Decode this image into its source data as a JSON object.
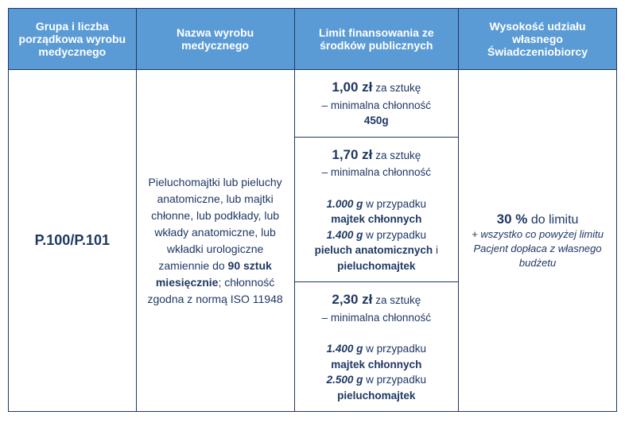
{
  "colors": {
    "header_bg": "#5b9bd5",
    "header_text": "#ffffff",
    "border": "#1f3864",
    "body_text": "#1f3864"
  },
  "headers": {
    "col1": "Grupa i liczba porządkowa wyrobu medycznego",
    "col2": "Nazwa wyrobu medycznego",
    "col3": "Limit finansowania ze środków publicznych",
    "col4": "Wysokość udziału własnego Świadczeniobiorcy"
  },
  "row": {
    "code": "P.100/P.101",
    "desc_part1": "Pieluchomajtki lub pieluchy anatomiczne, lub majtki chłonne, lub podkłady, lub wkłady anatomiczne, lub wkładki urologiczne zamiennie do",
    "desc_bold": "90 sztuk miesięcznie",
    "desc_part2": "; chłonność zgodna z normą ISO 11948",
    "limit1": {
      "price": "1,00 zł",
      "per_piece": "za sztukę",
      "min_label": "– minimalna chłonność",
      "weight": "450g"
    },
    "limit2": {
      "price": "1,70 zł",
      "per_piece": "za sztukę",
      "min_label": "– minimalna chłonność",
      "weight1": "1.000 g",
      "case1_label": "w przypadku",
      "product1": "majtek chłonnych",
      "weight2": "1.400 g",
      "case2_label": "w przypadku",
      "product2a": "pieluch anatomicznych",
      "and": "i",
      "product2b": "pieluchomajtek"
    },
    "limit3": {
      "price": "2,30 zł",
      "per_piece": "za sztukę",
      "min_label": "– minimalna chłonność",
      "weight1": "1.400 g",
      "case1_label": "w przypadku",
      "product1": "majtek chłonnych",
      "weight2": "2.500 g",
      "case2_label": "w przypadku",
      "product2": "pieluchomajtek"
    },
    "share": {
      "percent": "30 %",
      "to_limit": "do limitu",
      "note": "+ wszystko co powyżej limitu Pacjent dopłaca z własnego budżetu"
    }
  }
}
